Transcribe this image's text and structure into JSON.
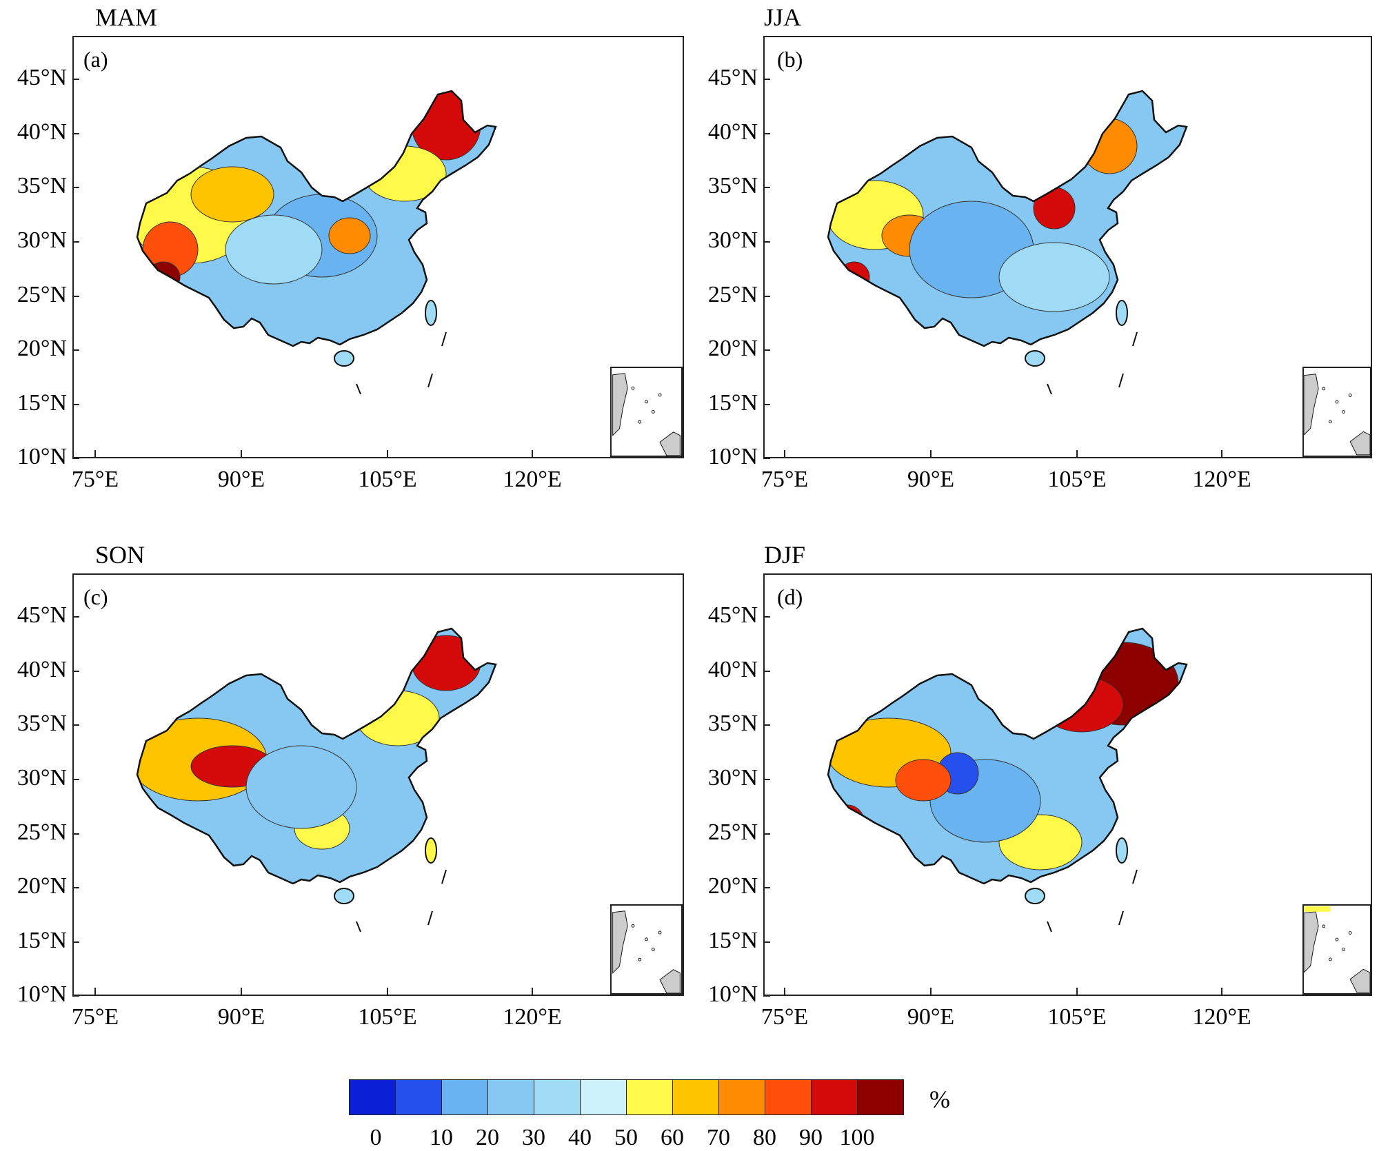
{
  "panels": [
    {
      "season": "MAM",
      "tag": "(a)"
    },
    {
      "season": "JJA",
      "tag": "(b)"
    },
    {
      "season": "SON",
      "tag": "(c)"
    },
    {
      "season": "DJF",
      "tag": "(d)"
    }
  ],
  "y_axis_labels": [
    "45°N",
    "40°N",
    "35°N",
    "30°N",
    "25°N",
    "20°N",
    "15°N",
    "10°N"
  ],
  "x_axis_labels": [
    "75°E",
    "90°E",
    "105°E",
    "120°E"
  ],
  "colorbar": {
    "unit": "%",
    "ticks": [
      "0",
      "10",
      "20",
      "30",
      "40",
      "50",
      "60",
      "70",
      "80",
      "90",
      "100"
    ],
    "colors": [
      "#0a1fd6",
      "#2550ee",
      "#69b4f0",
      "#86c8f2",
      "#9fdbf4",
      "#cdf1fa",
      "#fffa4a",
      "#ffc400",
      "#ff8c00",
      "#ff4f0a",
      "#d40a0a",
      "#8c0000"
    ]
  }
}
